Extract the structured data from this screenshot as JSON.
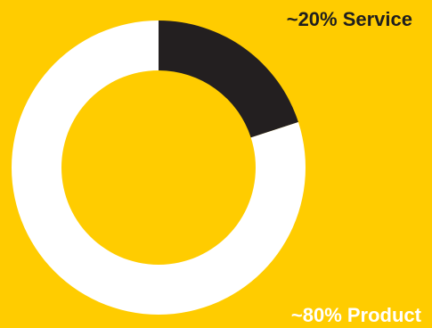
{
  "colors": {
    "background": "#ffcc00",
    "service": "#231f20",
    "product": "#ffffff"
  },
  "chart_data": {
    "type": "pie",
    "variant": "donut",
    "title": "",
    "slices": [
      {
        "label": "~20% Service",
        "value": 20,
        "color": "#231f20"
      },
      {
        "label": "~80% Product",
        "value": 80,
        "color": "#ffffff"
      }
    ]
  }
}
